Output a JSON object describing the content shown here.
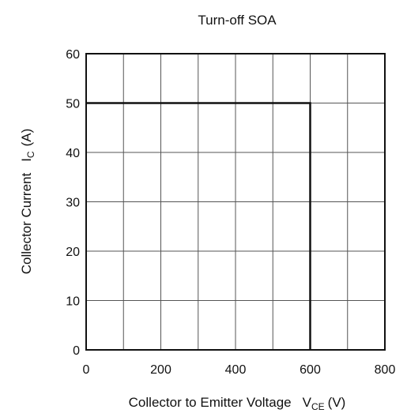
{
  "chart_data": {
    "type": "line",
    "title": "Turn-off SOA",
    "xlabel": "Collector to Emitter Voltage",
    "xlabel_symbol": "V",
    "xlabel_symbol_sub": "CE",
    "xlabel_unit": "(V)",
    "ylabel": "Collector Current",
    "ylabel_symbol": "I",
    "ylabel_symbol_sub": "C",
    "ylabel_unit": "(A)",
    "xlim": [
      0,
      800
    ],
    "ylim": [
      0,
      60
    ],
    "x_ticks": [
      0,
      200,
      400,
      600,
      800
    ],
    "y_ticks": [
      0,
      10,
      20,
      30,
      40,
      50,
      60
    ],
    "x_grid": [
      0,
      100,
      200,
      300,
      400,
      500,
      600,
      700,
      800
    ],
    "y_grid": [
      0,
      10,
      20,
      30,
      40,
      50,
      60
    ],
    "grid": true,
    "legend": "none",
    "series": [
      {
        "x": [
          0,
          600,
          600
        ],
        "y": [
          50,
          50,
          0
        ]
      }
    ],
    "colors": {
      "line": "#111111",
      "grid": "#555555",
      "frame": "#111111"
    }
  }
}
